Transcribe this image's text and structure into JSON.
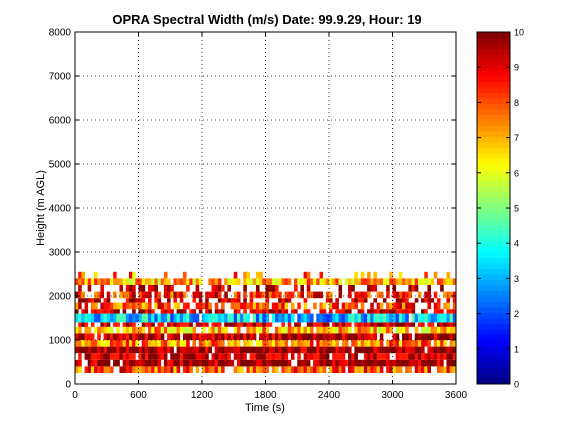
{
  "chart_data": {
    "type": "heatmap",
    "title": "OPRA Spectral Width (m/s)  Date: 99.9.29, Hour: 19",
    "xlabel": "Time (s)",
    "ylabel": "Height (m AGL)",
    "xlim": [
      0,
      3600
    ],
    "ylim": [
      0,
      8000
    ],
    "x_ticks": [
      0,
      600,
      1200,
      1800,
      2400,
      3000,
      3600
    ],
    "y_ticks": [
      0,
      1000,
      2000,
      3000,
      4000,
      5000,
      6000,
      7000,
      8000
    ],
    "grid": true,
    "grid_style": "dotted",
    "colorbar": {
      "min": 0,
      "max": 10,
      "ticks": [
        0,
        1,
        2,
        3,
        4,
        5,
        6,
        7,
        8,
        9,
        10
      ],
      "colormap": "jet"
    },
    "data_extent": {
      "time_s": [
        0,
        3600
      ],
      "height_m": [
        250,
        2550
      ]
    },
    "height_bands": [
      {
        "height_range": [
          250,
          400
        ],
        "typical_value": 8.0,
        "coverage": 0.9
      },
      {
        "height_range": [
          400,
          550
        ],
        "typical_value": 10.0,
        "coverage": 0.95
      },
      {
        "height_range": [
          550,
          700
        ],
        "typical_value": 9.0,
        "coverage": 0.9
      },
      {
        "height_range": [
          700,
          850
        ],
        "typical_value": 10.0,
        "coverage": 0.95
      },
      {
        "height_range": [
          850,
          1000
        ],
        "typical_value": 7.5,
        "coverage": 0.9
      },
      {
        "height_range": [
          1000,
          1150
        ],
        "typical_value": 9.5,
        "coverage": 0.9
      },
      {
        "height_range": [
          1150,
          1300
        ],
        "typical_value": 7.0,
        "coverage": 0.85
      },
      {
        "height_range": [
          1300,
          1400
        ],
        "typical_value": 9.0,
        "coverage": 0.8
      },
      {
        "height_range": [
          1400,
          1600
        ],
        "typical_value": 3.3,
        "coverage": 0.95
      },
      {
        "height_range": [
          1600,
          1700
        ],
        "typical_value": 9.0,
        "coverage": 0.7
      },
      {
        "height_range": [
          1700,
          1850
        ],
        "typical_value": 8.0,
        "coverage": 0.75
      },
      {
        "height_range": [
          1850,
          1950
        ],
        "typical_value": 9.5,
        "coverage": 0.45
      },
      {
        "height_range": [
          1950,
          2100
        ],
        "typical_value": 8.5,
        "coverage": 0.7
      },
      {
        "height_range": [
          2100,
          2250
        ],
        "typical_value": 9.5,
        "coverage": 0.4
      },
      {
        "height_range": [
          2250,
          2400
        ],
        "typical_value": 7.0,
        "coverage": 0.9
      },
      {
        "height_range": [
          2400,
          2550
        ],
        "typical_value": 7.5,
        "coverage": 0.25
      }
    ]
  }
}
